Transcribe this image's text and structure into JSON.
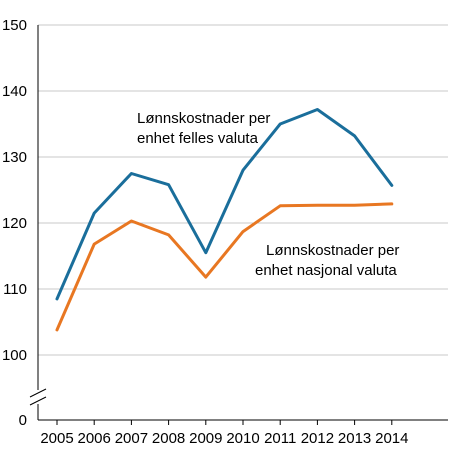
{
  "chart_data": {
    "type": "line",
    "x": [
      "2005",
      "2006",
      "2007",
      "2008",
      "2009",
      "2010",
      "2011",
      "2012",
      "2013",
      "2014"
    ],
    "series": [
      {
        "name": "Lønnskostnader per enhet felles valuta",
        "values": [
          108.5,
          121.5,
          127.5,
          125.8,
          115.5,
          128.0,
          135.0,
          137.2,
          133.2,
          125.7
        ],
        "color": "#1a6e9b"
      },
      {
        "name": "Lønnskostnader per enhet nasjonal valuta",
        "values": [
          103.8,
          116.8,
          120.3,
          118.2,
          111.8,
          118.7,
          122.6,
          122.7,
          122.7,
          122.9
        ],
        "color": "#e87722"
      }
    ],
    "annotations": [
      {
        "lines": [
          "Lønnskostnader per",
          "enhet felles valuta"
        ]
      },
      {
        "lines": [
          "Lønnskostnader per",
          "enhet nasjonal valuta"
        ]
      }
    ],
    "yticks": [
      0,
      100,
      110,
      120,
      130,
      140,
      150
    ],
    "ylim": [
      100,
      150
    ],
    "y_axis_break": true,
    "grid": true,
    "title": "",
    "xlabel": "",
    "ylabel": ""
  }
}
